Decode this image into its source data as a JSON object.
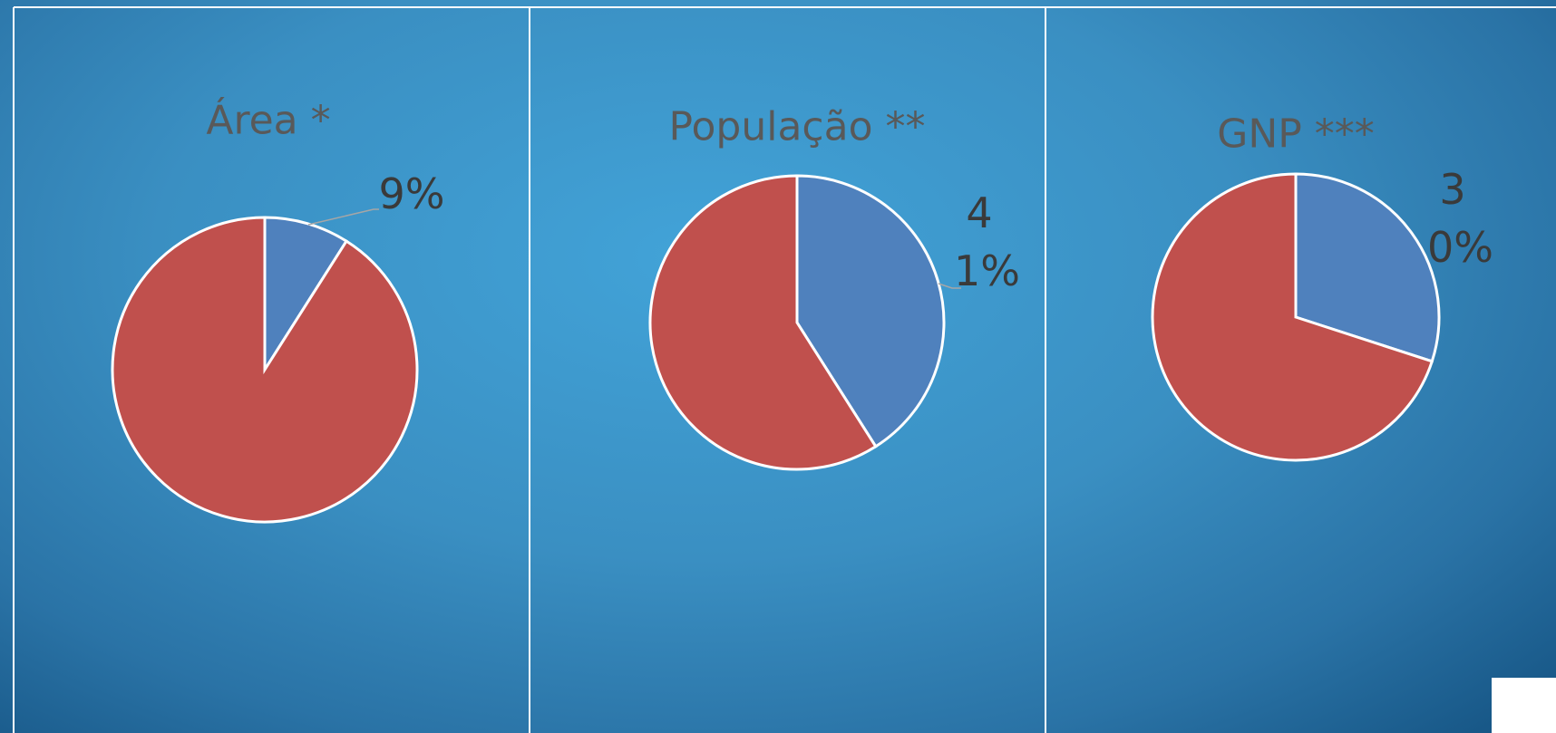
{
  "chart_data": [
    {
      "type": "pie",
      "title": "Área *",
      "values": [
        9,
        91
      ],
      "value_labels": [
        "9%",
        null
      ],
      "colors": [
        "#4f81bd",
        "#c0504d"
      ]
    },
    {
      "type": "pie",
      "title": "População **",
      "values": [
        41,
        59
      ],
      "value_labels": [
        "41%",
        null
      ],
      "colors": [
        "#4f81bd",
        "#c0504d"
      ]
    },
    {
      "type": "pie",
      "title": "GNP ***",
      "values": [
        30,
        70
      ],
      "value_labels": [
        "30%",
        null
      ],
      "colors": [
        "#4f81bd",
        "#c0504d"
      ]
    }
  ]
}
